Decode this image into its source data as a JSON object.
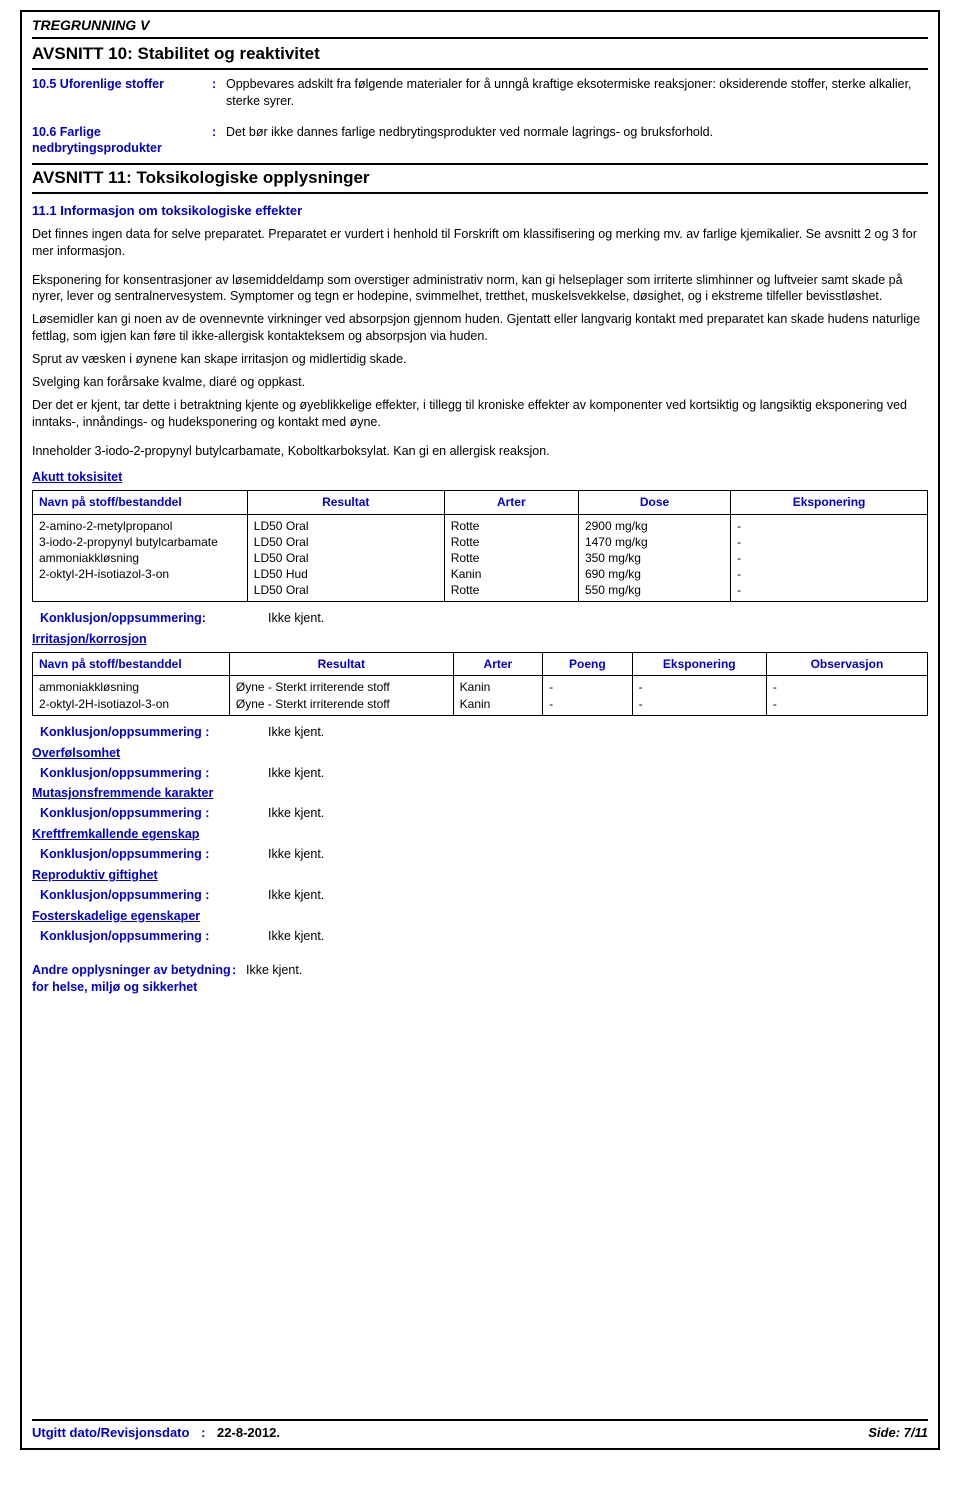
{
  "header": {
    "title": "TREGRUNNING V"
  },
  "section10": {
    "heading": "AVSNITT 10: Stabilitet og reaktivitet",
    "items": [
      {
        "label": "10.5 Uforenlige stoffer",
        "text": "Oppbevares adskilt fra følgende materialer for å unngå kraftige eksotermiske reaksjoner: oksiderende stoffer, sterke alkalier, sterke syrer."
      },
      {
        "label": "10.6 Farlige nedbrytingsprodukter",
        "text": "Det bør ikke dannes farlige nedbrytingsprodukter ved normale lagrings- og bruksforhold."
      }
    ]
  },
  "section11": {
    "heading": "AVSNITT 11: Toksikologiske opplysninger",
    "sub": "11.1 Informasjon om toksikologiske effekter",
    "p1": "Det finnes ingen data for selve preparatet. Preparatet er vurdert i henhold til Forskrift om klassifisering og merking mv. av farlige kjemikalier. Se avsnitt 2 og 3 for mer informasjon.",
    "p2": "Eksponering for konsentrasjoner av løsemiddeldamp som overstiger administrativ norm, kan gi helseplager som irriterte slimhinner og luftveier samt skade på nyrer, lever og sentralnervesystem. Symptomer og tegn er hodepine, svimmelhet, tretthet, muskelsvekkelse, døsighet, og i ekstreme tilfeller bevisstløshet.",
    "p3": "Løsemidler kan gi noen av de ovennevnte virkninger ved absorpsjon gjennom huden. Gjentatt eller langvarig kontakt med preparatet kan skade hudens naturlige fettlag, som igjen kan føre til ikke-allergisk kontakteksem og absorpsjon via huden.",
    "p4": "Sprut av væsken i øynene kan skape irritasjon og midlertidig skade.",
    "p5": "Svelging kan forårsake kvalme, diaré og oppkast.",
    "p6": "Der det er kjent, tar dette i betraktning kjente og øyeblikkelige effekter, i tillegg til kroniske effekter av komponenter ved kortsiktig og langsiktig eksponering ved inntaks-, innåndings- og hudeksponering og kontakt med øyne.",
    "p7": "Inneholder 3-iodo-2-propynyl butylcarbamate, Koboltkarboksylat. Kan gi en allergisk reaksjon."
  },
  "acute": {
    "title": "Akutt toksisitet",
    "headers": [
      "Navn på stoff/bestanddel",
      "Resultat",
      "Arter",
      "Dose",
      "Eksponering"
    ],
    "rows": [
      [
        "2-amino-2-metylpropanol",
        "LD50 Oral",
        "Rotte",
        "2900 mg/kg",
        "-"
      ],
      [
        "3-iodo-2-propynyl butylcarbamate",
        "LD50 Oral",
        "Rotte",
        "1470 mg/kg",
        "-"
      ],
      [
        "ammoniakkløsning",
        "LD50 Oral",
        "Rotte",
        "350 mg/kg",
        "-"
      ],
      [
        "2-oktyl-2H-isotiazol-3-on",
        "LD50 Hud",
        "Kanin",
        "690 mg/kg",
        "-"
      ],
      [
        "",
        "LD50 Oral",
        "Rotte",
        "550 mg/kg",
        "-"
      ]
    ],
    "conclusion_label": "Konklusjon/oppsummering:",
    "conclusion_value": "Ikke kjent."
  },
  "irritation": {
    "title": "Irritasjon/korrosjon",
    "headers": [
      "Navn på stoff/bestanddel",
      "Resultat",
      "Arter",
      "Poeng",
      "Eksponering",
      "Observasjon"
    ],
    "rows": [
      [
        "ammoniakkløsning",
        "Øyne - Sterkt irriterende stoff",
        "Kanin",
        "-",
        "-",
        "-"
      ],
      [
        "2-oktyl-2H-isotiazol-3-on",
        "Øyne - Sterkt irriterende stoff",
        "Kanin",
        "-",
        "-",
        "-"
      ]
    ]
  },
  "groups": [
    {
      "title": "",
      "label": "Konklusjon/oppsummering  :",
      "value": "Ikke kjent."
    },
    {
      "title": "Overfølsomhet",
      "label": "Konklusjon/oppsummering  :",
      "value": "Ikke kjent."
    },
    {
      "title": "Mutasjonsfremmende karakter",
      "label": "Konklusjon/oppsummering  :",
      "value": "Ikke kjent."
    },
    {
      "title": "Kreftfremkallende egenskap",
      "label": "Konklusjon/oppsummering  :",
      "value": "Ikke kjent."
    },
    {
      "title": "Reproduktiv giftighet",
      "label": "Konklusjon/oppsummering  :",
      "value": "Ikke kjent."
    },
    {
      "title": "Fosterskadelige egenskaper",
      "label": "Konklusjon/oppsummering  :",
      "value": "Ikke kjent."
    }
  ],
  "other": {
    "label": "Andre opplysninger av betydning for helse, miljø og sikkerhet",
    "value": "Ikke kjent."
  },
  "footer": {
    "left_label": "Utgitt dato/Revisjonsdato",
    "left_sep": ":",
    "left_value": "22-8-2012.",
    "right": "Side: 7/11"
  }
}
